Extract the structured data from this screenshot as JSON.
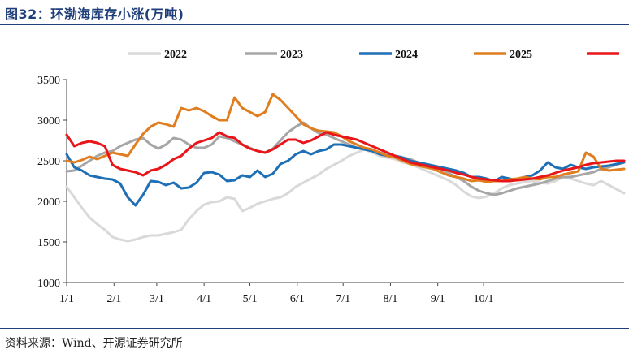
{
  "title": "图32：环渤海库存小涨(万吨)",
  "source": "资料来源：Wind、开源证券研究所",
  "chart_data": {
    "type": "line",
    "ylim": [
      1000,
      3500
    ],
    "yticks": [
      1000,
      1500,
      2000,
      2500,
      3000,
      3500
    ],
    "xlim": [
      0,
      365
    ],
    "xticks": [
      {
        "label": "1/1",
        "x": 0
      },
      {
        "label": "2/1",
        "x": 31
      },
      {
        "label": "3/1",
        "x": 59
      },
      {
        "label": "4/1",
        "x": 90
      },
      {
        "label": "5/1",
        "x": 120
      },
      {
        "label": "6/1",
        "x": 151
      },
      {
        "label": "7/1",
        "x": 181
      },
      {
        "label": "8/1",
        "x": 212
      },
      {
        "label": "9/1",
        "x": 243
      },
      {
        "label": "10/1",
        "x": 273
      }
    ],
    "legend_position": "top",
    "series": [
      {
        "name": "2022",
        "color": "#d9d9d9",
        "x": [
          0,
          5,
          10,
          15,
          20,
          25,
          30,
          35,
          40,
          45,
          50,
          55,
          60,
          65,
          70,
          75,
          80,
          85,
          90,
          95,
          100,
          105,
          110,
          115,
          120,
          125,
          130,
          135,
          140,
          145,
          150,
          155,
          160,
          165,
          170,
          175,
          180,
          185,
          190,
          195,
          200,
          205,
          210,
          215,
          220,
          225,
          230,
          235,
          240,
          245,
          250,
          255,
          260,
          265,
          270,
          275,
          280,
          285,
          290,
          295,
          300,
          305,
          310,
          315,
          320,
          325,
          330,
          335,
          340,
          345,
          350,
          355,
          360,
          365
        ],
        "y": [
          2180,
          2050,
          1920,
          1800,
          1720,
          1650,
          1560,
          1530,
          1510,
          1530,
          1560,
          1580,
          1580,
          1600,
          1620,
          1650,
          1780,
          1880,
          1960,
          1990,
          2000,
          2050,
          2030,
          1880,
          1920,
          1970,
          2000,
          2030,
          2050,
          2100,
          2180,
          2230,
          2280,
          2330,
          2400,
          2450,
          2500,
          2560,
          2600,
          2640,
          2600,
          2560,
          2540,
          2520,
          2480,
          2460,
          2420,
          2380,
          2340,
          2300,
          2260,
          2200,
          2120,
          2060,
          2040,
          2060,
          2100,
          2160,
          2200,
          2220,
          2240,
          2250,
          2230,
          2220,
          2250,
          2300,
          2280,
          2250,
          2220,
          2200,
          2250,
          2200,
          2150,
          2100
        ]
      },
      {
        "name": "2023",
        "color": "#a6a6a6",
        "x": [
          0,
          5,
          10,
          15,
          20,
          25,
          30,
          35,
          40,
          45,
          50,
          55,
          60,
          65,
          70,
          75,
          80,
          85,
          90,
          95,
          100,
          105,
          110,
          115,
          120,
          125,
          130,
          135,
          140,
          145,
          150,
          155,
          160,
          165,
          170,
          175,
          180,
          185,
          190,
          195,
          200,
          205,
          210,
          215,
          220,
          225,
          230,
          235,
          240,
          245,
          250,
          255,
          260,
          265,
          270,
          275,
          280,
          285,
          290,
          295,
          300,
          305,
          310,
          315,
          320,
          325,
          330,
          335,
          340,
          345,
          350,
          355,
          360,
          365
        ],
        "y": [
          2370,
          2380,
          2440,
          2500,
          2560,
          2600,
          2620,
          2680,
          2720,
          2760,
          2780,
          2700,
          2650,
          2700,
          2780,
          2760,
          2700,
          2660,
          2660,
          2700,
          2800,
          2780,
          2740,
          2700,
          2660,
          2620,
          2600,
          2650,
          2750,
          2850,
          2920,
          2970,
          2900,
          2840,
          2820,
          2780,
          2740,
          2700,
          2660,
          2640,
          2620,
          2600,
          2580,
          2560,
          2540,
          2520,
          2480,
          2460,
          2440,
          2400,
          2350,
          2300,
          2250,
          2180,
          2130,
          2100,
          2080,
          2100,
          2130,
          2160,
          2180,
          2200,
          2220,
          2250,
          2280,
          2300,
          2300,
          2320,
          2340,
          2360,
          2400,
          2420,
          2450,
          2480
        ]
      },
      {
        "name": "2024",
        "color": "#1f6fb5",
        "x": [
          0,
          5,
          10,
          15,
          20,
          25,
          30,
          35,
          40,
          45,
          50,
          55,
          60,
          65,
          70,
          75,
          80,
          85,
          90,
          95,
          100,
          105,
          110,
          115,
          120,
          125,
          130,
          135,
          140,
          145,
          150,
          155,
          160,
          165,
          170,
          175,
          180,
          185,
          190,
          195,
          200,
          205,
          210,
          215,
          220,
          225,
          230,
          235,
          240,
          245,
          250,
          255,
          260,
          265,
          270,
          275,
          280,
          285,
          290,
          295,
          300,
          305,
          310,
          315,
          320,
          325,
          330,
          335,
          340,
          345,
          350,
          355,
          360,
          365
        ],
        "y": [
          2580,
          2420,
          2380,
          2320,
          2300,
          2280,
          2270,
          2220,
          2050,
          1950,
          2080,
          2250,
          2240,
          2200,
          2230,
          2160,
          2170,
          2230,
          2350,
          2360,
          2330,
          2250,
          2260,
          2320,
          2300,
          2380,
          2300,
          2340,
          2460,
          2500,
          2580,
          2620,
          2580,
          2620,
          2640,
          2700,
          2700,
          2680,
          2660,
          2640,
          2620,
          2580,
          2560,
          2560,
          2540,
          2500,
          2480,
          2460,
          2440,
          2420,
          2400,
          2380,
          2350,
          2300,
          2300,
          2280,
          2250,
          2300,
          2280,
          2260,
          2300,
          2320,
          2380,
          2480,
          2420,
          2400,
          2450,
          2420,
          2400,
          2420,
          2430,
          2440,
          2460,
          2480
        ]
      },
      {
        "name": "2025",
        "color": "#e07d1e",
        "x": [
          0,
          5,
          10,
          15,
          20,
          25,
          30,
          35,
          40,
          45,
          50,
          55,
          60,
          65,
          70,
          75,
          80,
          85,
          90,
          95,
          100,
          105,
          110,
          115,
          120,
          125,
          130,
          135,
          140,
          145,
          150,
          155,
          160,
          165,
          170,
          175,
          180,
          185,
          190,
          195,
          200,
          205,
          210,
          215,
          220,
          225,
          230,
          235,
          240,
          245,
          250,
          255,
          260,
          265,
          270,
          275,
          280,
          285,
          290,
          295,
          300,
          305,
          310,
          315,
          320,
          325,
          330,
          335,
          340,
          345,
          350,
          355,
          360,
          365
        ],
        "y": [
          2500,
          2480,
          2510,
          2550,
          2520,
          2560,
          2600,
          2580,
          2560,
          2700,
          2830,
          2920,
          2970,
          2950,
          2920,
          3150,
          3120,
          3150,
          3110,
          3050,
          3000,
          3000,
          3280,
          3150,
          3100,
          3050,
          3100,
          3320,
          3250,
          3150,
          3050,
          2950,
          2900,
          2870,
          2860,
          2850,
          2800,
          2740,
          2700,
          2660,
          2640,
          2600,
          2560,
          2540,
          2500,
          2460,
          2440,
          2420,
          2400,
          2360,
          2320,
          2300,
          2280,
          2250,
          2260,
          2240,
          2250,
          2250,
          2270,
          2280,
          2300,
          2280,
          2270,
          2300,
          2300,
          2330,
          2350,
          2370,
          2600,
          2550,
          2400,
          2380,
          2390,
          2400
        ]
      },
      {
        "name": "",
        "color": "#e8151b",
        "x": [
          0,
          5,
          10,
          15,
          20,
          25,
          30,
          35,
          40,
          45,
          50,
          55,
          60,
          65,
          70,
          75,
          80,
          85,
          90,
          95,
          100,
          105,
          110,
          115,
          120,
          125,
          130,
          135,
          140,
          145,
          150,
          155,
          160,
          165,
          170,
          175,
          180,
          185,
          190,
          195,
          200,
          205,
          210,
          215,
          220,
          225,
          230,
          235,
          240,
          245,
          250,
          255,
          260,
          265,
          270,
          275,
          280,
          285,
          290,
          295,
          300,
          305,
          310,
          315,
          320,
          325,
          330,
          335,
          340,
          345,
          350,
          355,
          360,
          365
        ],
        "y": [
          2820,
          2680,
          2720,
          2740,
          2720,
          2680,
          2450,
          2400,
          2380,
          2360,
          2320,
          2380,
          2400,
          2450,
          2520,
          2560,
          2650,
          2720,
          2750,
          2780,
          2850,
          2800,
          2780,
          2700,
          2650,
          2620,
          2600,
          2640,
          2700,
          2760,
          2760,
          2720,
          2750,
          2800,
          2850,
          2820,
          2800,
          2780,
          2760,
          2720,
          2680,
          2640,
          2600,
          2560,
          2520,
          2480,
          2460,
          2440,
          2420,
          2400,
          2380,
          2350,
          2330,
          2300,
          2280,
          2270,
          2260,
          2250,
          2250,
          2260,
          2270,
          2280,
          2300,
          2320,
          2350,
          2380,
          2400,
          2420,
          2450,
          2470,
          2480,
          2490,
          2500,
          2500
        ]
      }
    ]
  }
}
